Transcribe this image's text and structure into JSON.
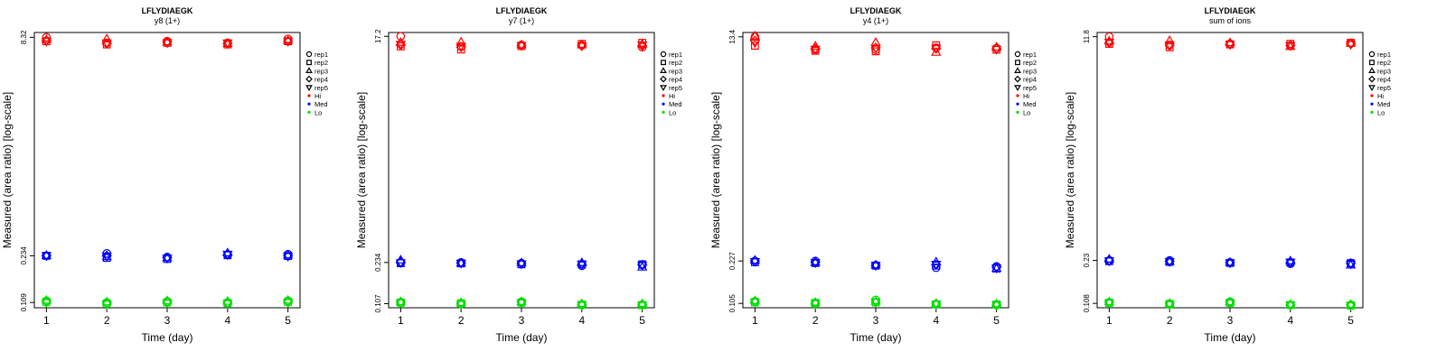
{
  "colors": {
    "Hi": "#ff0000",
    "Med": "#0000ff",
    "Lo": "#00dd00"
  },
  "legend": {
    "placement": "right",
    "entries": [
      {
        "label": "rep1",
        "shape": "circle"
      },
      {
        "label": "rep2",
        "shape": "square"
      },
      {
        "label": "rep3",
        "shape": "triangle-up"
      },
      {
        "label": "rep4",
        "shape": "diamond"
      },
      {
        "label": "rep5",
        "shape": "triangle-down"
      },
      {
        "label": "Hi",
        "shape": "dot",
        "color": "#ff0000"
      },
      {
        "label": "Med",
        "shape": "dot",
        "color": "#0000ff"
      },
      {
        "label": "Lo",
        "shape": "dot",
        "color": "#00dd00"
      }
    ]
  },
  "chart_data": [
    {
      "type": "scatter",
      "title": "LFLYDIAEGK",
      "subtitle": "y8 (1+)",
      "xlabel": "Time (day)",
      "ylabel": "Measured (area ratio) [log-scale]",
      "y_scale": "log",
      "xlim": [
        0.8,
        5.2
      ],
      "ylim": [
        0.1,
        9.0
      ],
      "x_ticks": [
        1,
        2,
        3,
        4,
        5
      ],
      "y_ticks": [
        {
          "value": 0.109,
          "label": "0.109"
        },
        {
          "value": 0.234,
          "label": "0.234"
        },
        {
          "value": 8.32,
          "label": "8.32"
        }
      ],
      "grid": false,
      "x": [
        1,
        2,
        3,
        4,
        5
      ],
      "series": [
        {
          "group": "Hi",
          "rep": "rep1",
          "values": [
            8.32,
            7.6,
            7.8,
            7.6,
            8.1
          ]
        },
        {
          "group": "Hi",
          "rep": "rep2",
          "values": [
            7.8,
            7.4,
            7.6,
            7.4,
            7.8
          ]
        },
        {
          "group": "Hi",
          "rep": "rep3",
          "values": [
            8.0,
            8.1,
            7.7,
            7.5,
            7.9
          ]
        },
        {
          "group": "Hi",
          "rep": "rep4",
          "values": [
            7.9,
            7.5,
            7.7,
            7.5,
            7.8
          ]
        },
        {
          "group": "Hi",
          "rep": "rep5",
          "values": [
            7.8,
            7.6,
            7.6,
            7.6,
            7.8
          ]
        },
        {
          "group": "Med",
          "rep": "rep1",
          "values": [
            0.234,
            0.243,
            0.229,
            0.238,
            0.24
          ]
        },
        {
          "group": "Med",
          "rep": "rep2",
          "values": [
            0.234,
            0.226,
            0.222,
            0.236,
            0.233
          ]
        },
        {
          "group": "Med",
          "rep": "rep3",
          "values": [
            0.235,
            0.23,
            0.226,
            0.245,
            0.236
          ]
        },
        {
          "group": "Med",
          "rep": "rep4",
          "values": [
            0.234,
            0.234,
            0.227,
            0.238,
            0.234
          ]
        },
        {
          "group": "Med",
          "rep": "rep5",
          "values": [
            0.234,
            0.233,
            0.225,
            0.24,
            0.232
          ]
        },
        {
          "group": "Lo",
          "rep": "rep1",
          "values": [
            0.112,
            0.109,
            0.111,
            0.109,
            0.112
          ]
        },
        {
          "group": "Lo",
          "rep": "rep2",
          "values": [
            0.11,
            0.107,
            0.109,
            0.108,
            0.11
          ]
        },
        {
          "group": "Lo",
          "rep": "rep3",
          "values": [
            0.113,
            0.11,
            0.112,
            0.111,
            0.113
          ]
        },
        {
          "group": "Lo",
          "rep": "rep4",
          "values": [
            0.111,
            0.108,
            0.11,
            0.108,
            0.111
          ]
        },
        {
          "group": "Lo",
          "rep": "rep5",
          "values": [
            0.109,
            0.106,
            0.108,
            0.107,
            0.109
          ]
        }
      ]
    },
    {
      "type": "scatter",
      "title": "LFLYDIAEGK",
      "subtitle": "y7 (1+)",
      "xlabel": "Time (day)",
      "ylabel": "Measured (area ratio) [log-scale]",
      "y_scale": "log",
      "xlim": [
        0.8,
        5.2
      ],
      "ylim": [
        0.099,
        18.5
      ],
      "x_ticks": [
        1,
        2,
        3,
        4,
        5
      ],
      "y_ticks": [
        {
          "value": 0.107,
          "label": "0.107"
        },
        {
          "value": 0.234,
          "label": "0.234"
        },
        {
          "value": 17.2,
          "label": "17.2"
        }
      ],
      "grid": false,
      "x": [
        1,
        2,
        3,
        4,
        5
      ],
      "series": [
        {
          "group": "Hi",
          "rep": "rep1",
          "values": [
            17.2,
            14.2,
            14.6,
            14.5,
            14.0
          ]
        },
        {
          "group": "Hi",
          "rep": "rep2",
          "values": [
            14.2,
            13.4,
            14.3,
            14.9,
            15.2
          ]
        },
        {
          "group": "Hi",
          "rep": "rep3",
          "values": [
            15.3,
            15.4,
            14.6,
            14.6,
            14.8
          ]
        },
        {
          "group": "Hi",
          "rep": "rep4",
          "values": [
            14.6,
            14.0,
            14.4,
            14.4,
            14.4
          ]
        },
        {
          "group": "Hi",
          "rep": "rep5",
          "values": [
            14.8,
            14.3,
            14.5,
            14.3,
            14.6
          ]
        },
        {
          "group": "Med",
          "rep": "rep1",
          "values": [
            0.234,
            0.234,
            0.231,
            0.22,
            0.224
          ]
        },
        {
          "group": "Med",
          "rep": "rep2",
          "values": [
            0.231,
            0.23,
            0.226,
            0.226,
            0.226
          ]
        },
        {
          "group": "Med",
          "rep": "rep3",
          "values": [
            0.245,
            0.231,
            0.232,
            0.233,
            0.214
          ]
        },
        {
          "group": "Med",
          "rep": "rep4",
          "values": [
            0.236,
            0.232,
            0.229,
            0.226,
            0.224
          ]
        },
        {
          "group": "Med",
          "rep": "rep5",
          "values": [
            0.233,
            0.231,
            0.228,
            0.227,
            0.222
          ]
        },
        {
          "group": "Lo",
          "rep": "rep1",
          "values": [
            0.11,
            0.106,
            0.111,
            0.104,
            0.105
          ]
        },
        {
          "group": "Lo",
          "rep": "rep2",
          "values": [
            0.109,
            0.108,
            0.109,
            0.105,
            0.104
          ]
        },
        {
          "group": "Lo",
          "rep": "rep3",
          "values": [
            0.111,
            0.109,
            0.111,
            0.107,
            0.107
          ]
        },
        {
          "group": "Lo",
          "rep": "rep4",
          "values": [
            0.11,
            0.107,
            0.11,
            0.105,
            0.105
          ]
        },
        {
          "group": "Lo",
          "rep": "rep5",
          "values": [
            0.109,
            0.106,
            0.109,
            0.104,
            0.104
          ]
        }
      ]
    },
    {
      "type": "scatter",
      "title": "LFLYDIAEGK",
      "subtitle": "y4 (1+)",
      "xlabel": "Time (day)",
      "ylabel": "Measured (area ratio) [log-scale]",
      "y_scale": "log",
      "xlim": [
        0.8,
        5.2
      ],
      "ylim": [
        0.097,
        14.5
      ],
      "x_ticks": [
        1,
        2,
        3,
        4,
        5
      ],
      "y_ticks": [
        {
          "value": 0.105,
          "label": "0.105"
        },
        {
          "value": 0.227,
          "label": "0.227"
        },
        {
          "value": 13.4,
          "label": "13.4"
        }
      ],
      "grid": false,
      "x": [
        1,
        2,
        3,
        4,
        5
      ],
      "series": [
        {
          "group": "Hi",
          "rep": "rep1",
          "values": [
            13.4,
            10.6,
            10.6,
            11.0,
            10.9
          ]
        },
        {
          "group": "Hi",
          "rep": "rep2",
          "values": [
            11.4,
            10.4,
            10.3,
            11.5,
            10.6
          ]
        },
        {
          "group": "Hi",
          "rep": "rep3",
          "values": [
            13.6,
            11.3,
            12.1,
            10.1,
            11.1
          ]
        },
        {
          "group": "Hi",
          "rep": "rep4",
          "values": [
            12.5,
            10.8,
            11.0,
            10.8,
            10.8
          ]
        },
        {
          "group": "Hi",
          "rep": "rep5",
          "values": [
            12.0,
            10.7,
            10.9,
            10.9,
            10.7
          ]
        },
        {
          "group": "Med",
          "rep": "rep1",
          "values": [
            0.227,
            0.227,
            0.21,
            0.201,
            0.206
          ]
        },
        {
          "group": "Med",
          "rep": "rep2",
          "values": [
            0.222,
            0.219,
            0.209,
            0.209,
            0.198
          ]
        },
        {
          "group": "Med",
          "rep": "rep3",
          "values": [
            0.23,
            0.221,
            0.211,
            0.223,
            0.198
          ]
        },
        {
          "group": "Med",
          "rep": "rep4",
          "values": [
            0.227,
            0.222,
            0.21,
            0.212,
            0.203
          ]
        },
        {
          "group": "Med",
          "rep": "rep5",
          "values": [
            0.225,
            0.22,
            0.209,
            0.214,
            0.2
          ]
        },
        {
          "group": "Lo",
          "rep": "rep1",
          "values": [
            0.109,
            0.104,
            0.112,
            0.104,
            0.102
          ]
        },
        {
          "group": "Lo",
          "rep": "rep2",
          "values": [
            0.107,
            0.106,
            0.107,
            0.103,
            0.103
          ]
        },
        {
          "group": "Lo",
          "rep": "rep3",
          "values": [
            0.11,
            0.107,
            0.109,
            0.105,
            0.104
          ]
        },
        {
          "group": "Lo",
          "rep": "rep4",
          "values": [
            0.108,
            0.105,
            0.108,
            0.104,
            0.102
          ]
        },
        {
          "group": "Lo",
          "rep": "rep5",
          "values": [
            0.108,
            0.105,
            0.108,
            0.104,
            0.102
          ]
        }
      ]
    },
    {
      "type": "scatter",
      "title": "LFLYDIAEGK",
      "subtitle": "sum of ions",
      "xlabel": "Time (day)",
      "ylabel": "Measured (area ratio) [log-scale]",
      "y_scale": "log",
      "xlim": [
        0.8,
        5.2
      ],
      "ylim": [
        0.1,
        12.7
      ],
      "x_ticks": [
        1,
        2,
        3,
        4,
        5
      ],
      "y_ticks": [
        {
          "value": 0.108,
          "label": "0.108"
        },
        {
          "value": 0.23,
          "label": "0.23"
        },
        {
          "value": 11.8,
          "label": "11.8"
        }
      ],
      "grid": false,
      "x": [
        1,
        2,
        3,
        4,
        5
      ],
      "series": [
        {
          "group": "Hi",
          "rep": "rep1",
          "values": [
            11.8,
            10.2,
            10.4,
            10.1,
            10.5
          ]
        },
        {
          "group": "Hi",
          "rep": "rep2",
          "values": [
            10.4,
            9.8,
            10.3,
            10.4,
            10.6
          ]
        },
        {
          "group": "Hi",
          "rep": "rep3",
          "values": [
            10.9,
            11.0,
            10.6,
            9.9,
            10.5
          ]
        },
        {
          "group": "Hi",
          "rep": "rep4",
          "values": [
            10.6,
            10.1,
            10.3,
            10.1,
            10.4
          ]
        },
        {
          "group": "Hi",
          "rep": "rep5",
          "values": [
            10.7,
            10.2,
            10.3,
            10.1,
            10.3
          ]
        },
        {
          "group": "Med",
          "rep": "rep1",
          "values": [
            0.23,
            0.23,
            0.222,
            0.217,
            0.22
          ]
        },
        {
          "group": "Med",
          "rep": "rep2",
          "values": [
            0.227,
            0.224,
            0.22,
            0.222,
            0.219
          ]
        },
        {
          "group": "Med",
          "rep": "rep3",
          "values": [
            0.235,
            0.226,
            0.222,
            0.228,
            0.212
          ]
        },
        {
          "group": "Med",
          "rep": "rep4",
          "values": [
            0.229,
            0.226,
            0.221,
            0.222,
            0.218
          ]
        },
        {
          "group": "Med",
          "rep": "rep5",
          "values": [
            0.228,
            0.225,
            0.22,
            0.223,
            0.216
          ]
        },
        {
          "group": "Lo",
          "rep": "rep1",
          "values": [
            0.11,
            0.106,
            0.111,
            0.105,
            0.105
          ]
        },
        {
          "group": "Lo",
          "rep": "rep2",
          "values": [
            0.109,
            0.107,
            0.109,
            0.105,
            0.104
          ]
        },
        {
          "group": "Lo",
          "rep": "rep3",
          "values": [
            0.111,
            0.108,
            0.111,
            0.106,
            0.106
          ]
        },
        {
          "group": "Lo",
          "rep": "rep4",
          "values": [
            0.11,
            0.107,
            0.11,
            0.105,
            0.105
          ]
        },
        {
          "group": "Lo",
          "rep": "rep5",
          "values": [
            0.109,
            0.106,
            0.109,
            0.105,
            0.104
          ]
        }
      ]
    }
  ]
}
